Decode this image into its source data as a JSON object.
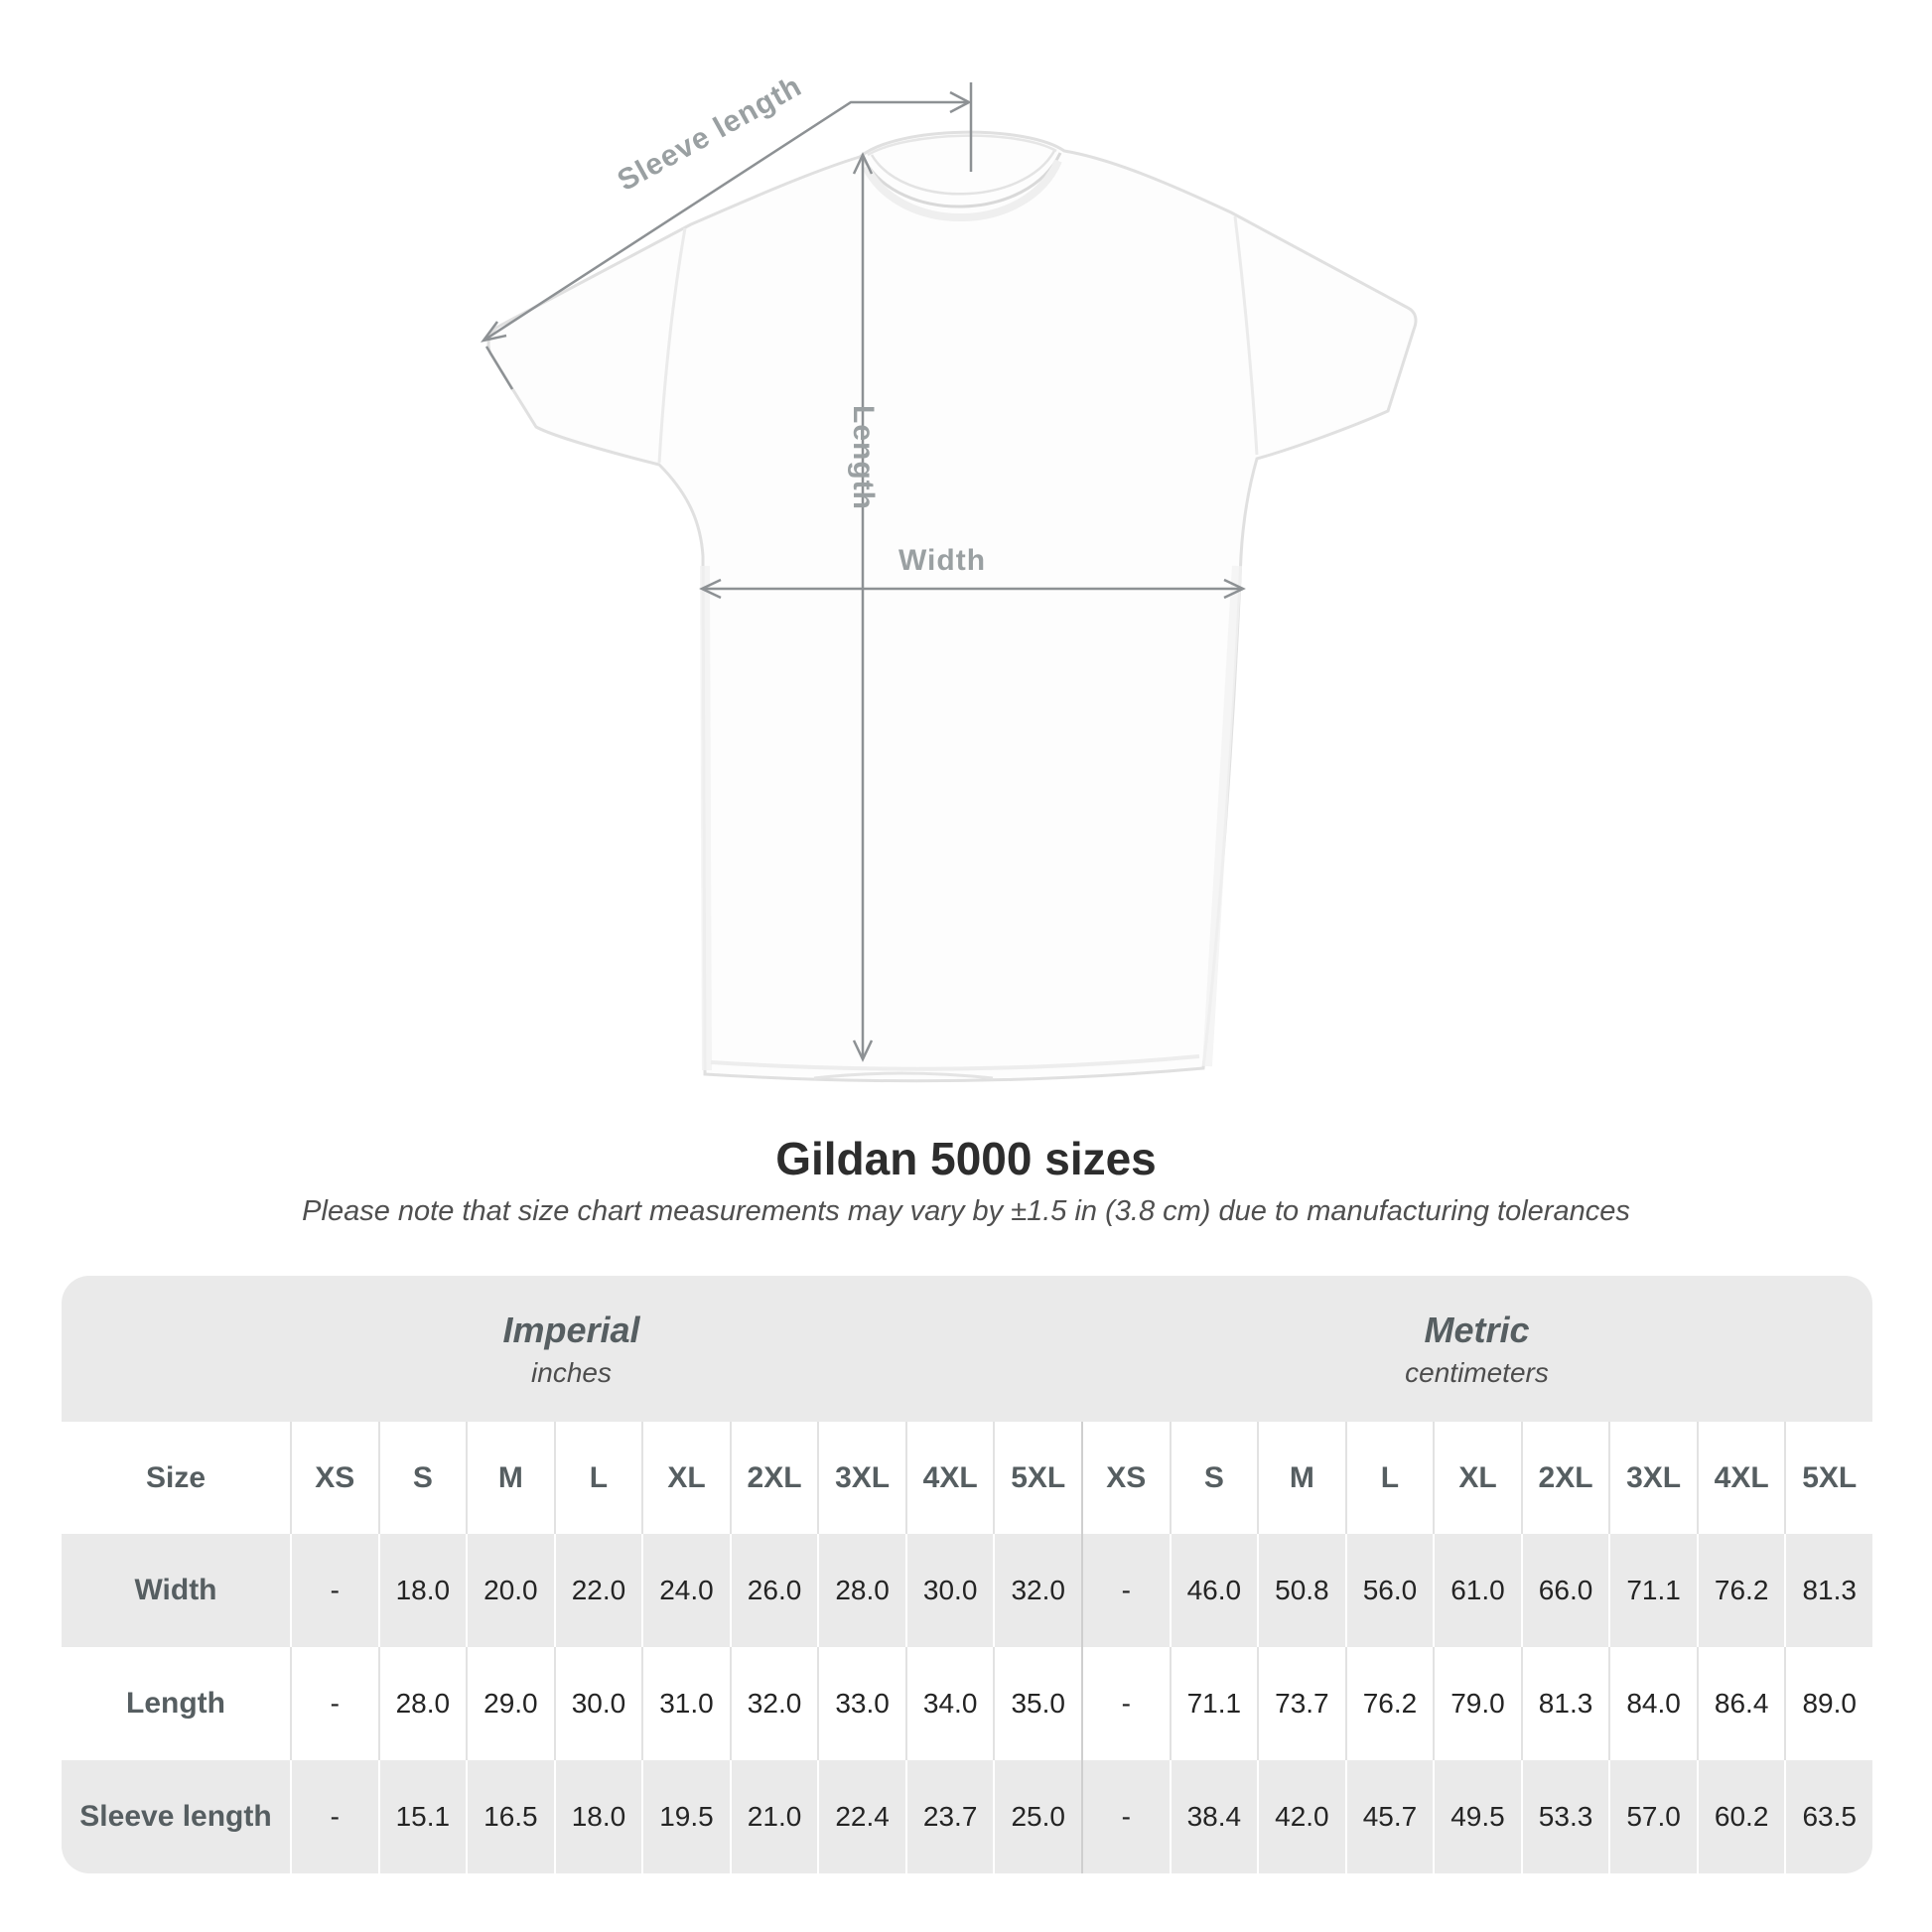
{
  "figure": {
    "labels": {
      "sleeve_length": "Sleeve length",
      "length": "Length",
      "width": "Width"
    }
  },
  "title": "Gildan 5000 sizes",
  "subtitle": "Please note that size chart measurements may vary by ±1.5 in (3.8 cm) due to manufacturing tolerances",
  "colors": {
    "annotation_line": "#8d9194",
    "annotation_text": "#9aa0a2",
    "table_band_gray": "#eaeaea",
    "table_text_dark": "#242424",
    "table_label_gray": "#565e61"
  },
  "table": {
    "sections": [
      {
        "label": "Imperial",
        "sublabel": "inches"
      },
      {
        "label": "Metric",
        "sublabel": "centimeters"
      }
    ],
    "size_header_label": "Size",
    "sizes": [
      "XS",
      "S",
      "M",
      "L",
      "XL",
      "2XL",
      "3XL",
      "4XL",
      "5XL"
    ],
    "rows": [
      {
        "label": "Width",
        "imperial": [
          "-",
          "18.0",
          "20.0",
          "22.0",
          "24.0",
          "26.0",
          "28.0",
          "30.0",
          "32.0"
        ],
        "metric": [
          "-",
          "46.0",
          "50.8",
          "56.0",
          "61.0",
          "66.0",
          "71.1",
          "76.2",
          "81.3"
        ]
      },
      {
        "label": "Length",
        "imperial": [
          "-",
          "28.0",
          "29.0",
          "30.0",
          "31.0",
          "32.0",
          "33.0",
          "34.0",
          "35.0"
        ],
        "metric": [
          "-",
          "71.1",
          "73.7",
          "76.2",
          "79.0",
          "81.3",
          "84.0",
          "86.4",
          "89.0"
        ]
      },
      {
        "label": "Sleeve length",
        "imperial": [
          "-",
          "15.1",
          "16.5",
          "18.0",
          "19.5",
          "21.0",
          "22.4",
          "23.7",
          "25.0"
        ],
        "metric": [
          "-",
          "38.4",
          "42.0",
          "45.7",
          "49.5",
          "53.3",
          "57.0",
          "60.2",
          "63.5"
        ]
      }
    ]
  }
}
